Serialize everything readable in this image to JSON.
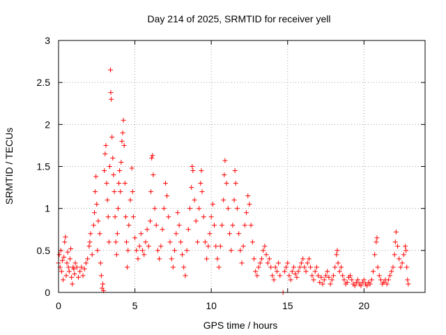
{
  "chart_data": {
    "type": "scatter",
    "title": "Day 214 of 2025, SRMTID for receiver yell",
    "xlabel": "GPS time / hours",
    "ylabel": "SRMTID / TECUs",
    "xlim": [
      0,
      24
    ],
    "ylim": [
      0,
      3
    ],
    "xticks": [
      0,
      5,
      10,
      15,
      20
    ],
    "yticks": [
      0,
      0.5,
      1,
      1.5,
      2,
      2.5,
      3
    ],
    "xtick_labels": [
      "0",
      "5",
      "10",
      "15",
      "20"
    ],
    "ytick_labels": [
      "0",
      "0.5",
      "1",
      "1.5",
      "2",
      "2.5",
      "3"
    ],
    "grid": true,
    "marker": "plus",
    "color": "#ff0000",
    "series": [
      {
        "name": "SRMTID",
        "points": [
          [
            0.0,
            0.35
          ],
          [
            0.05,
            0.45
          ],
          [
            0.1,
            0.3
          ],
          [
            0.15,
            0.5
          ],
          [
            0.2,
            0.25
          ],
          [
            0.25,
            0.38
          ],
          [
            0.3,
            0.15
          ],
          [
            0.35,
            0.42
          ],
          [
            0.4,
            0.6
          ],
          [
            0.45,
            0.66
          ],
          [
            0.5,
            0.2
          ],
          [
            0.55,
            0.35
          ],
          [
            0.6,
            0.48
          ],
          [
            0.65,
            0.3
          ],
          [
            0.7,
            0.25
          ],
          [
            0.75,
            0.4
          ],
          [
            0.8,
            0.52
          ],
          [
            0.85,
            0.18
          ],
          [
            0.9,
            0.1
          ],
          [
            0.95,
            0.3
          ],
          [
            1.0,
            0.28
          ],
          [
            1.05,
            0.22
          ],
          [
            1.1,
            0.35
          ],
          [
            1.2,
            0.3
          ],
          [
            1.3,
            0.18
          ],
          [
            1.4,
            0.25
          ],
          [
            1.5,
            0.3
          ],
          [
            1.6,
            0.2
          ],
          [
            1.7,
            0.28
          ],
          [
            1.8,
            0.35
          ],
          [
            1.9,
            0.4
          ],
          [
            2.0,
            0.55
          ],
          [
            2.05,
            0.6
          ],
          [
            2.1,
            0.7
          ],
          [
            2.2,
            0.45
          ],
          [
            2.3,
            0.8
          ],
          [
            2.35,
            0.95
          ],
          [
            2.4,
            1.2
          ],
          [
            2.45,
            1.38
          ],
          [
            2.5,
            1.05
          ],
          [
            2.55,
            0.5
          ],
          [
            2.6,
            0.85
          ],
          [
            2.7,
            0.7
          ],
          [
            2.75,
            0.35
          ],
          [
            2.8,
            0.2
          ],
          [
            2.85,
            0.05
          ],
          [
            2.9,
            0.1
          ],
          [
            2.95,
            0.02
          ],
          [
            3.0,
            1.45
          ],
          [
            3.05,
            1.65
          ],
          [
            3.1,
            1.75
          ],
          [
            3.15,
            1.3
          ],
          [
            3.2,
            1.1
          ],
          [
            3.25,
            0.9
          ],
          [
            3.3,
            0.6
          ],
          [
            3.35,
            1.5
          ],
          [
            3.4,
            2.65
          ],
          [
            3.42,
            2.38
          ],
          [
            3.45,
            2.3
          ],
          [
            3.5,
            1.85
          ],
          [
            3.55,
            1.6
          ],
          [
            3.6,
            1.4
          ],
          [
            3.65,
            1.2
          ],
          [
            3.7,
            0.9
          ],
          [
            3.75,
            0.6
          ],
          [
            3.8,
            0.45
          ],
          [
            3.85,
            0.7
          ],
          [
            3.9,
            1.0
          ],
          [
            3.95,
            1.3
          ],
          [
            4.0,
            1.45
          ],
          [
            4.05,
            1.2
          ],
          [
            4.1,
            1.55
          ],
          [
            4.15,
            1.8
          ],
          [
            4.2,
            1.9
          ],
          [
            4.25,
            2.05
          ],
          [
            4.3,
            1.75
          ],
          [
            4.35,
            1.3
          ],
          [
            4.4,
            0.9
          ],
          [
            4.45,
            0.6
          ],
          [
            4.5,
            0.3
          ],
          [
            4.55,
            0.5
          ],
          [
            4.6,
            0.8
          ],
          [
            4.7,
            1.1
          ],
          [
            4.8,
            1.48
          ],
          [
            4.85,
            1.2
          ],
          [
            4.9,
            0.9
          ],
          [
            5.0,
            0.65
          ],
          [
            5.1,
            0.5
          ],
          [
            5.2,
            0.4
          ],
          [
            5.3,
            0.55
          ],
          [
            5.4,
            0.7
          ],
          [
            5.5,
            0.5
          ],
          [
            5.6,
            0.45
          ],
          [
            5.7,
            0.6
          ],
          [
            5.8,
            0.75
          ],
          [
            5.9,
            0.55
          ],
          [
            6.0,
            0.85
          ],
          [
            6.05,
            1.2
          ],
          [
            6.1,
            1.6
          ],
          [
            6.15,
            1.63
          ],
          [
            6.2,
            1.4
          ],
          [
            6.3,
            1.0
          ],
          [
            6.4,
            0.8
          ],
          [
            6.5,
            0.5
          ],
          [
            6.6,
            0.4
          ],
          [
            6.7,
            0.55
          ],
          [
            6.8,
            0.75
          ],
          [
            6.9,
            1.0
          ],
          [
            7.0,
            1.3
          ],
          [
            7.1,
            1.15
          ],
          [
            7.2,
            0.9
          ],
          [
            7.3,
            0.6
          ],
          [
            7.4,
            0.4
          ],
          [
            7.5,
            0.3
          ],
          [
            7.6,
            0.5
          ],
          [
            7.7,
            0.7
          ],
          [
            7.8,
            0.95
          ],
          [
            7.9,
            0.8
          ],
          [
            8.0,
            0.6
          ],
          [
            8.1,
            0.45
          ],
          [
            8.2,
            0.3
          ],
          [
            8.3,
            0.2
          ],
          [
            8.4,
            0.5
          ],
          [
            8.5,
            0.75
          ],
          [
            8.6,
            1.0
          ],
          [
            8.7,
            1.25
          ],
          [
            8.75,
            1.5
          ],
          [
            8.8,
            1.45
          ],
          [
            8.9,
            1.1
          ],
          [
            9.0,
            0.85
          ],
          [
            9.1,
            0.6
          ],
          [
            9.2,
            1.0
          ],
          [
            9.3,
            1.3
          ],
          [
            9.35,
            1.45
          ],
          [
            9.4,
            1.2
          ],
          [
            9.5,
            0.9
          ],
          [
            9.6,
            0.6
          ],
          [
            9.7,
            0.4
          ],
          [
            9.8,
            0.55
          ],
          [
            9.9,
            0.7
          ],
          [
            10.0,
            0.9
          ],
          [
            10.1,
            1.05
          ],
          [
            10.2,
            0.8
          ],
          [
            10.3,
            0.55
          ],
          [
            10.4,
            0.4
          ],
          [
            10.5,
            0.3
          ],
          [
            10.6,
            0.55
          ],
          [
            10.7,
            0.8
          ],
          [
            10.8,
            1.1
          ],
          [
            10.85,
            1.4
          ],
          [
            10.9,
            1.57
          ],
          [
            11.0,
            1.3
          ],
          [
            11.1,
            1.0
          ],
          [
            11.2,
            0.7
          ],
          [
            11.3,
            0.5
          ],
          [
            11.4,
            0.8
          ],
          [
            11.5,
            1.1
          ],
          [
            11.55,
            1.45
          ],
          [
            11.6,
            1.3
          ],
          [
            11.7,
            1.0
          ],
          [
            11.8,
            0.7
          ],
          [
            11.9,
            0.5
          ],
          [
            12.0,
            0.35
          ],
          [
            12.1,
            0.55
          ],
          [
            12.2,
            0.8
          ],
          [
            12.3,
            0.95
          ],
          [
            12.4,
            1.15
          ],
          [
            12.5,
            1.05
          ],
          [
            12.6,
            0.8
          ],
          [
            12.7,
            0.6
          ],
          [
            12.8,
            0.4
          ],
          [
            12.9,
            0.25
          ],
          [
            13.0,
            0.2
          ],
          [
            13.1,
            0.3
          ],
          [
            13.2,
            0.35
          ],
          [
            13.3,
            0.4
          ],
          [
            13.4,
            0.5
          ],
          [
            13.5,
            0.55
          ],
          [
            13.6,
            0.45
          ],
          [
            13.7,
            0.35
          ],
          [
            13.8,
            0.4
          ],
          [
            13.9,
            0.3
          ],
          [
            14.0,
            0.2
          ],
          [
            14.1,
            0.15
          ],
          [
            14.2,
            0.3
          ],
          [
            14.3,
            0.25
          ],
          [
            14.4,
            0.35
          ],
          [
            14.5,
            0.2
          ],
          [
            14.7,
            0.0
          ],
          [
            14.8,
            0.25
          ],
          [
            14.9,
            0.3
          ],
          [
            15.0,
            0.35
          ],
          [
            15.1,
            0.2
          ],
          [
            15.2,
            0.15
          ],
          [
            15.3,
            0.25
          ],
          [
            15.4,
            0.3
          ],
          [
            15.5,
            0.22
          ],
          [
            15.6,
            0.18
          ],
          [
            15.7,
            0.25
          ],
          [
            15.8,
            0.3
          ],
          [
            15.9,
            0.35
          ],
          [
            16.0,
            0.4
          ],
          [
            16.1,
            0.3
          ],
          [
            16.2,
            0.25
          ],
          [
            16.3,
            0.35
          ],
          [
            16.4,
            0.4
          ],
          [
            16.5,
            0.3
          ],
          [
            16.6,
            0.2
          ],
          [
            16.7,
            0.15
          ],
          [
            16.8,
            0.25
          ],
          [
            16.9,
            0.3
          ],
          [
            17.0,
            0.2
          ],
          [
            17.1,
            0.12
          ],
          [
            17.2,
            0.18
          ],
          [
            17.3,
            0.1
          ],
          [
            17.4,
            0.15
          ],
          [
            17.5,
            0.2
          ],
          [
            17.6,
            0.25
          ],
          [
            17.7,
            0.18
          ],
          [
            17.8,
            0.1
          ],
          [
            17.9,
            0.15
          ],
          [
            18.0,
            0.2
          ],
          [
            18.1,
            0.3
          ],
          [
            18.2,
            0.45
          ],
          [
            18.25,
            0.5
          ],
          [
            18.3,
            0.35
          ],
          [
            18.4,
            0.25
          ],
          [
            18.5,
            0.3
          ],
          [
            18.6,
            0.2
          ],
          [
            18.7,
            0.15
          ],
          [
            18.8,
            0.1
          ],
          [
            18.9,
            0.12
          ],
          [
            19.0,
            0.18
          ],
          [
            19.1,
            0.2
          ],
          [
            19.2,
            0.15
          ],
          [
            19.3,
            0.1
          ],
          [
            19.4,
            0.08
          ],
          [
            19.5,
            0.12
          ],
          [
            19.6,
            0.15
          ],
          [
            19.7,
            0.1
          ],
          [
            19.8,
            0.08
          ],
          [
            19.9,
            0.12
          ],
          [
            20.0,
            0.15
          ],
          [
            20.1,
            0.1
          ],
          [
            20.2,
            0.08
          ],
          [
            20.3,
            0.12
          ],
          [
            20.4,
            0.1
          ],
          [
            20.5,
            0.15
          ],
          [
            20.6,
            0.25
          ],
          [
            20.7,
            0.45
          ],
          [
            20.8,
            0.6
          ],
          [
            20.85,
            0.65
          ],
          [
            20.9,
            0.3
          ],
          [
            21.0,
            0.2
          ],
          [
            21.1,
            0.15
          ],
          [
            21.2,
            0.1
          ],
          [
            21.3,
            0.12
          ],
          [
            21.4,
            0.15
          ],
          [
            21.5,
            0.1
          ],
          [
            21.6,
            0.15
          ],
          [
            21.7,
            0.2
          ],
          [
            21.8,
            0.25
          ],
          [
            21.9,
            0.3
          ],
          [
            22.0,
            0.45
          ],
          [
            22.05,
            0.6
          ],
          [
            22.1,
            0.72
          ],
          [
            22.2,
            0.55
          ],
          [
            22.3,
            0.4
          ],
          [
            22.4,
            0.3
          ],
          [
            22.5,
            0.35
          ],
          [
            22.6,
            0.45
          ],
          [
            22.7,
            0.55
          ],
          [
            22.75,
            0.5
          ],
          [
            22.8,
            0.3
          ],
          [
            22.85,
            0.15
          ],
          [
            22.9,
            0.1
          ]
        ]
      }
    ]
  }
}
